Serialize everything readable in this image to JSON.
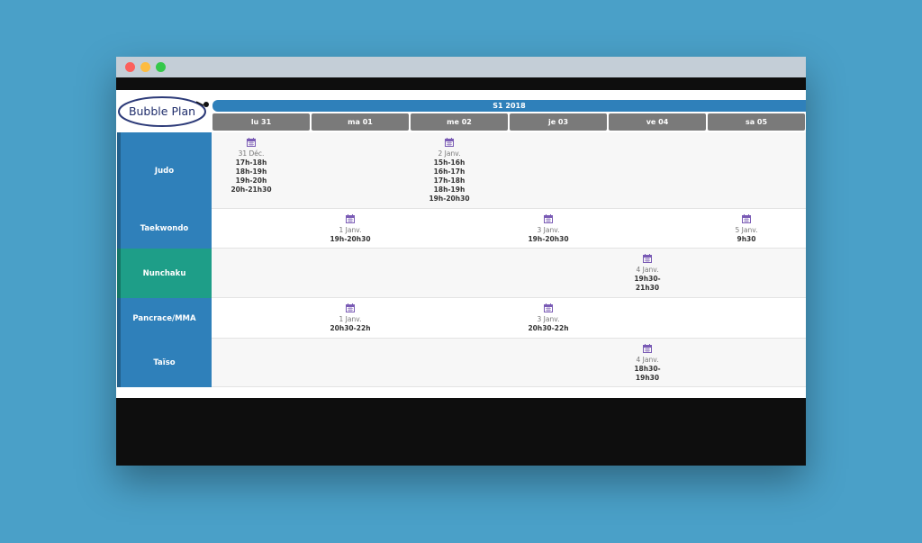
{
  "logo": "Bubble Plan",
  "period": "S1 2018",
  "days": [
    "lu 31",
    "ma 01",
    "me 02",
    "je 03",
    "ve 04",
    "sa 05"
  ],
  "rows": [
    {
      "label": "Judo",
      "cells": [
        {
          "date": "31 Déc.",
          "times": [
            "17h-18h",
            "18h-19h",
            "19h-20h",
            "20h-21h30"
          ]
        },
        null,
        {
          "date": "2 Janv.",
          "times": [
            "15h-16h",
            "16h-17h",
            "17h-18h",
            "18h-19h",
            "19h-20h30"
          ]
        },
        null,
        null,
        null
      ]
    },
    {
      "label": "Taekwondo",
      "cells": [
        null,
        {
          "date": "1 Janv.",
          "times": [
            "19h-20h30"
          ]
        },
        null,
        {
          "date": "3 Janv.",
          "times": [
            "19h-20h30"
          ]
        },
        null,
        {
          "date": "5 Janv.",
          "times": [
            "9h30"
          ]
        }
      ]
    },
    {
      "label": "Nunchaku",
      "cells": [
        null,
        null,
        null,
        null,
        {
          "date": "4 Janv.",
          "times": [
            "19h30-",
            "21h30"
          ]
        },
        null
      ]
    },
    {
      "label": "Pancrace/MMA",
      "cells": [
        null,
        {
          "date": "1 Janv.",
          "times": [
            "20h30-22h"
          ]
        },
        null,
        {
          "date": "3 Janv.",
          "times": [
            "20h30-22h"
          ]
        },
        null,
        null
      ]
    },
    {
      "label": "Taïso",
      "cells": [
        null,
        null,
        null,
        null,
        {
          "date": "4 Janv.",
          "times": [
            "18h30-",
            "19h30"
          ]
        },
        null
      ]
    }
  ]
}
